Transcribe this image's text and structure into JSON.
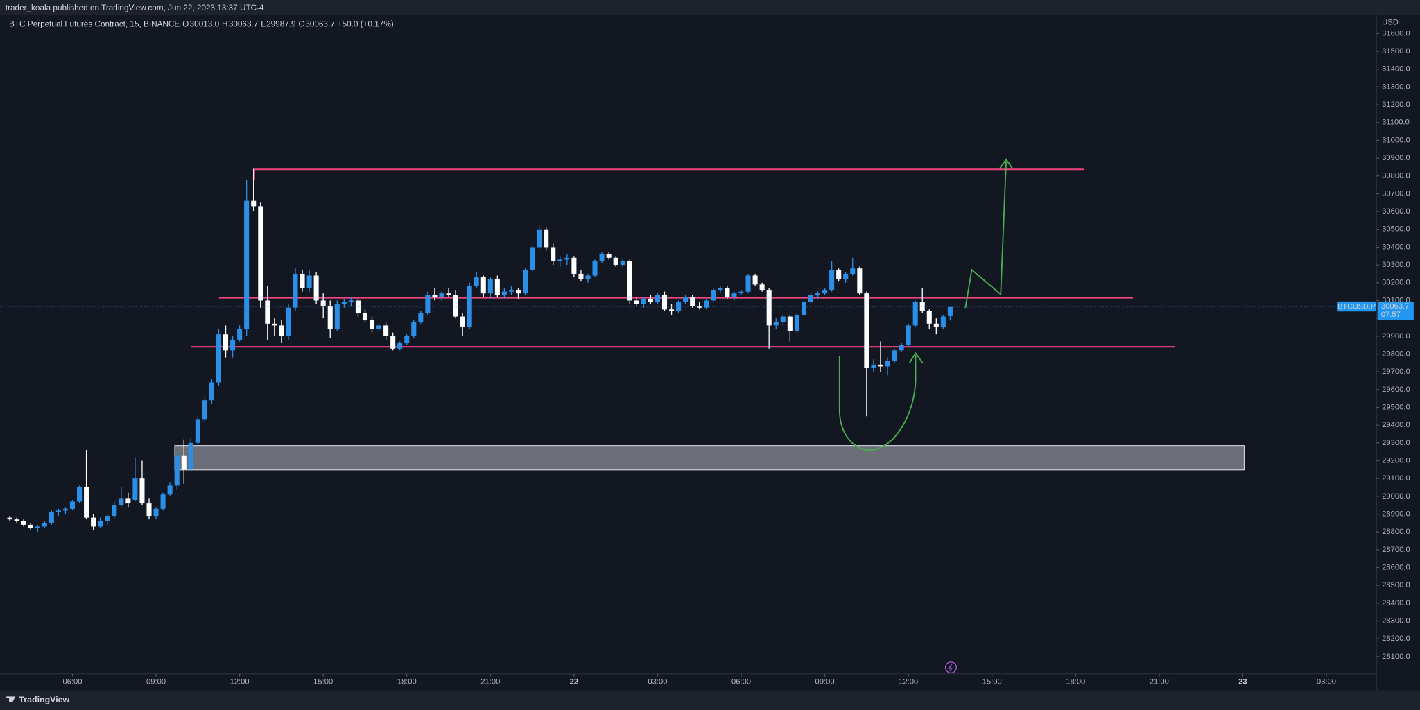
{
  "header": {
    "publisher": "trader_koala published on TradingView.com, Jun 22, 2023 13:37 UTC-4"
  },
  "footer": {
    "brand": "TradingView"
  },
  "chart_data": {
    "type": "candlestick",
    "title": "BTC Perpetual Futures Contract, 15, BINANCE",
    "ohlc_legend": [
      {
        "label": "O",
        "value": "30013.0"
      },
      {
        "label": "H",
        "value": "30063.7"
      },
      {
        "label": "L",
        "value": "29987.9"
      },
      {
        "label": "C",
        "value": "30063.7"
      }
    ],
    "change": "+50.0 (+0.17%)",
    "currency": "USD",
    "symbol": "BTCUSD.P",
    "last_price_label": "30063.7",
    "countdown": "07:57",
    "up_color": "#2b8fe8",
    "down_color": "#ffffff",
    "grid": false,
    "x": [
      3.75,
      4,
      4.25,
      4.5,
      4.75,
      5,
      5.25,
      5.5,
      5.75,
      6,
      6.25,
      6.5,
      6.75,
      7,
      7.25,
      7.5,
      7.75,
      8,
      8.25,
      8.5,
      8.75,
      9,
      9.25,
      9.5,
      9.75,
      10,
      10.25,
      10.5,
      10.75,
      11,
      11.25,
      11.5,
      11.75,
      12,
      12.25,
      12.5,
      12.75,
      13,
      13.25,
      13.5,
      13.75,
      14,
      14.25,
      14.5,
      14.75,
      15,
      15.25,
      15.5,
      15.75,
      16,
      16.25,
      16.5,
      16.75,
      17,
      17.25,
      17.5,
      17.75,
      18,
      18.25,
      18.5,
      18.75,
      19,
      19.25,
      19.5,
      19.75,
      20,
      20.25,
      20.5,
      20.75,
      21,
      21.25,
      21.5,
      21.75,
      22,
      22.25,
      22.5,
      22.75,
      23,
      23.25,
      23.5,
      23.75,
      24,
      24.25,
      24.5,
      24.75,
      25,
      25.25,
      25.5,
      25.75,
      26,
      26.25,
      26.5,
      26.75,
      27,
      27.25,
      27.5,
      27.75,
      28,
      28.25,
      28.5,
      28.75,
      29,
      29.25,
      29.5,
      29.75,
      30,
      30.25,
      30.5,
      30.75,
      31,
      31.25,
      31.5,
      31.75,
      32,
      32.25,
      32.5,
      32.75,
      33,
      33.25,
      33.5,
      33.75,
      34,
      34.25,
      34.5,
      34.75,
      35,
      35.25,
      35.5,
      35.75,
      36,
      36.25,
      36.5,
      36.75,
      37,
      37.25,
      37.5
    ],
    "open": [
      28880,
      28870,
      28860,
      28840,
      28820,
      28830,
      28850,
      28910,
      28920,
      28930,
      28970,
      29050,
      28880,
      28830,
      28860,
      28890,
      28950,
      28990,
      28980,
      29100,
      28960,
      28890,
      28930,
      29010,
      29060,
      29230,
      29150,
      29300,
      29430,
      29540,
      29640,
      29910,
      29820,
      29880,
      29940,
      30660,
      30630,
      30100,
      29970,
      29960,
      29900,
      30060,
      30250,
      30170,
      30240,
      30100,
      30070,
      29940,
      30080,
      30090,
      30100,
      30030,
      29990,
      29940,
      29960,
      29900,
      29830,
      29860,
      29900,
      29980,
      30030,
      30130,
      30120,
      30140,
      30130,
      30010,
      29950,
      30180,
      30230,
      30140,
      30220,
      30130,
      30150,
      30160,
      30140,
      30270,
      30400,
      30500,
      30400,
      30320,
      30330,
      30340,
      30250,
      30220,
      30240,
      30320,
      30360,
      30340,
      30300,
      30320,
      30100,
      30080,
      30110,
      30090,
      30130,
      30050,
      30040,
      30090,
      30120,
      30070,
      30060,
      30100,
      30160,
      30170,
      30120,
      30140,
      30150,
      30240,
      30190,
      30160,
      29960,
      29980,
      30010,
      29930,
      30020,
      30090,
      30130,
      30140,
      30160,
      30270,
      30220,
      30250,
      30280,
      30140,
      29720,
      29740,
      29730,
      29760,
      29820,
      29850,
      29960,
      30090,
      30040,
      29970,
      29950,
      30013
    ],
    "high": [
      28890,
      28880,
      28870,
      28850,
      28840,
      28860,
      28920,
      28930,
      28940,
      28980,
      29060,
      29260,
      28900,
      28880,
      28900,
      28970,
      29050,
      29020,
      29220,
      29200,
      28990,
      28940,
      29020,
      29080,
      29250,
      29320,
      29330,
      29450,
      29560,
      29660,
      29940,
      29960,
      29900,
      29960,
      30780,
      30840,
      30650,
      30180,
      30000,
      29990,
      30080,
      30280,
      30270,
      30270,
      30260,
      30140,
      30100,
      30100,
      30110,
      30120,
      30110,
      30050,
      30010,
      29970,
      29980,
      29920,
      29870,
      29910,
      29990,
      30040,
      30150,
      30170,
      30150,
      30170,
      30160,
      30030,
      30200,
      30260,
      30240,
      30230,
      30240,
      30170,
      30180,
      30170,
      30280,
      30410,
      30520,
      30510,
      30420,
      30350,
      30360,
      30350,
      30270,
      30250,
      30330,
      30370,
      30370,
      30350,
      30330,
      30330,
      30120,
      30120,
      30130,
      30140,
      30150,
      30080,
      30100,
      30130,
      30130,
      30090,
      30110,
      30170,
      30180,
      30180,
      30150,
      30160,
      30250,
      30250,
      30200,
      30170,
      30000,
      30020,
      30020,
      30030,
      30100,
      30140,
      30150,
      30170,
      30320,
      30280,
      30260,
      30340,
      30290,
      30150,
      29770,
      29870,
      29780,
      29830,
      29860,
      29970,
      30100,
      30170,
      30050,
      30000,
      30020,
      30063.7
    ],
    "low": [
      28860,
      28850,
      28830,
      28810,
      28800,
      28820,
      28840,
      28890,
      28900,
      28920,
      28960,
      28870,
      28810,
      28820,
      28840,
      28880,
      28940,
      28940,
      28970,
      28950,
      28870,
      28870,
      28920,
      29000,
      29040,
      29070,
      29140,
      29290,
      29420,
      29520,
      29620,
      29780,
      29780,
      29870,
      29900,
      30600,
      30060,
      29880,
      29900,
      29860,
      29880,
      30040,
      30150,
      30150,
      30080,
      30000,
      29890,
      29930,
      30060,
      30070,
      30010,
      29980,
      29920,
      29930,
      29880,
      29820,
      29820,
      29850,
      29890,
      29970,
      30020,
      30100,
      30100,
      30120,
      30000,
      29900,
      29940,
      30170,
      30120,
      30110,
      30120,
      30110,
      30130,
      30110,
      30130,
      30260,
      30390,
      30380,
      30300,
      30290,
      30300,
      30230,
      30210,
      30200,
      30230,
      30310,
      30330,
      30290,
      30290,
      30080,
      30070,
      30060,
      30080,
      30080,
      30040,
      30020,
      30030,
      30080,
      30060,
      30050,
      30050,
      30090,
      30140,
      30110,
      30100,
      30130,
      30140,
      30180,
      30150,
      29830,
      29940,
      29960,
      29870,
      29920,
      30010,
      30080,
      30110,
      30130,
      30150,
      30210,
      30200,
      30240,
      30130,
      29450,
      29700,
      29700,
      29680,
      29750,
      29810,
      29840,
      29950,
      30030,
      29940,
      29910,
      29940,
      29987.9
    ],
    "close": [
      28870,
      28860,
      28840,
      28820,
      28830,
      28850,
      28910,
      28920,
      28930,
      28970,
      29050,
      28880,
      28830,
      28860,
      28890,
      28950,
      28990,
      28960,
      29100,
      28960,
      28890,
      28930,
      29010,
      29060,
      29230,
      29150,
      29300,
      29430,
      29540,
      29640,
      29910,
      29820,
      29880,
      29940,
      30660,
      30630,
      30100,
      29970,
      29960,
      29900,
      30060,
      30250,
      30170,
      30240,
      30100,
      30070,
      29940,
      30080,
      30090,
      30100,
      30030,
      29990,
      29940,
      29960,
      29900,
      29830,
      29860,
      29900,
      29980,
      30030,
      30130,
      30120,
      30140,
      30130,
      30010,
      29950,
      30180,
      30230,
      30140,
      30220,
      30130,
      30150,
      30160,
      30140,
      30270,
      30400,
      30500,
      30400,
      30320,
      30330,
      30340,
      30250,
      30220,
      30240,
      30320,
      30360,
      30340,
      30300,
      30320,
      30100,
      30080,
      30110,
      30090,
      30130,
      30050,
      30040,
      30090,
      30120,
      30070,
      30060,
      30100,
      30160,
      30170,
      30120,
      30140,
      30150,
      30240,
      30190,
      30160,
      29960,
      29980,
      30010,
      29930,
      30020,
      30090,
      30130,
      30140,
      30160,
      30270,
      30220,
      30250,
      30280,
      30140,
      29720,
      29740,
      29730,
      29760,
      29820,
      29850,
      29960,
      30090,
      30040,
      29970,
      29950,
      30010,
      30063.7
    ],
    "xlim": [
      3.4,
      52.8
    ],
    "ylim": [
      28003,
      31702
    ],
    "xticks": [
      {
        "value": 6,
        "label": "06:00"
      },
      {
        "value": 9,
        "label": "09:00"
      },
      {
        "value": 12,
        "label": "12:00"
      },
      {
        "value": 15,
        "label": "15:00"
      },
      {
        "value": 18,
        "label": "18:00"
      },
      {
        "value": 21,
        "label": "21:00"
      },
      {
        "value": 24,
        "label": "22"
      },
      {
        "value": 27,
        "label": "03:00"
      },
      {
        "value": 30,
        "label": "06:00"
      },
      {
        "value": 33,
        "label": "09:00"
      },
      {
        "value": 36,
        "label": "12:00"
      },
      {
        "value": 39,
        "label": "15:00"
      },
      {
        "value": 42,
        "label": "18:00"
      },
      {
        "value": 45,
        "label": "21:00"
      },
      {
        "value": 48,
        "label": "23"
      },
      {
        "value": 51,
        "label": "03:00"
      }
    ],
    "yticks": [
      {
        "value": 28100,
        "label": "28100.0"
      },
      {
        "value": 28200,
        "label": "28200.0"
      },
      {
        "value": 28300,
        "label": "28300.0"
      },
      {
        "value": 28400,
        "label": "28400.0"
      },
      {
        "value": 28500,
        "label": "28500.0"
      },
      {
        "value": 28600,
        "label": "28600.0"
      },
      {
        "value": 28700,
        "label": "28700.0"
      },
      {
        "value": 28800,
        "label": "28800.0"
      },
      {
        "value": 28900,
        "label": "28900.0"
      },
      {
        "value": 29000,
        "label": "29000.0"
      },
      {
        "value": 29100,
        "label": "29100.0"
      },
      {
        "value": 29200,
        "label": "29200.0"
      },
      {
        "value": 29300,
        "label": "29300.0"
      },
      {
        "value": 29400,
        "label": "29400.0"
      },
      {
        "value": 29500,
        "label": "29500.0"
      },
      {
        "value": 29600,
        "label": "29600.0"
      },
      {
        "value": 29700,
        "label": "29700.0"
      },
      {
        "value": 29800,
        "label": "29800.0"
      },
      {
        "value": 29900,
        "label": "29900.0"
      },
      {
        "value": 30000,
        "label": "30000.0"
      },
      {
        "value": 30100,
        "label": "30100.0"
      },
      {
        "value": 30200,
        "label": "30200.0"
      },
      {
        "value": 30300,
        "label": "30300.0"
      },
      {
        "value": 30400,
        "label": "30400.0"
      },
      {
        "value": 30500,
        "label": "30500.0"
      },
      {
        "value": 30600,
        "label": "30600.0"
      },
      {
        "value": 30700,
        "label": "30700.0"
      },
      {
        "value": 30800,
        "label": "30800.0"
      },
      {
        "value": 30900,
        "label": "30900.0"
      },
      {
        "value": 31000,
        "label": "31000.0"
      },
      {
        "value": 31100,
        "label": "31100.0"
      },
      {
        "value": 31200,
        "label": "31200.0"
      },
      {
        "value": 31300,
        "label": "31300.0"
      },
      {
        "value": 31400,
        "label": "31400.0"
      },
      {
        "value": 31500,
        "label": "31500.0"
      },
      {
        "value": 31600,
        "label": "31600.0"
      }
    ],
    "levels": [
      {
        "price": 30837,
        "from": 12.53,
        "to": 42.3,
        "color": "#f0457d"
      },
      {
        "price": 30115,
        "from": 11.26,
        "to": 44.06,
        "color": "#f0457d"
      },
      {
        "price": 29840,
        "from": 10.26,
        "to": 45.55,
        "color": "#f0457d"
      }
    ],
    "zone": {
      "low": 29148,
      "high": 29285,
      "from": 9.67,
      "to": 48.05,
      "color": "#b4b4be"
    }
  }
}
